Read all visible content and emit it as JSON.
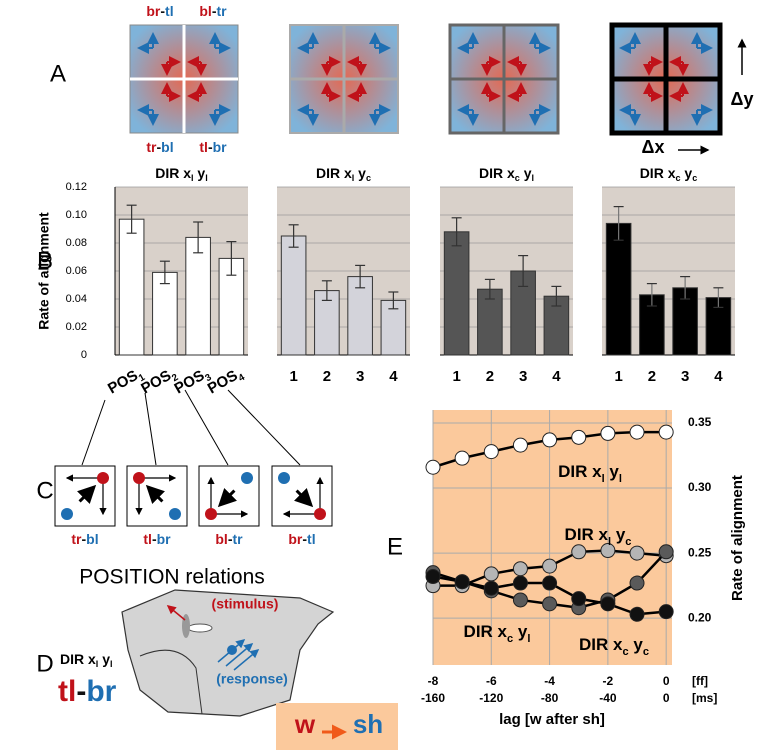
{
  "chart_data": [
    {
      "type": "bar",
      "title": [
        "DIR x",
        "l",
        " y",
        "l"
      ],
      "categories": [
        [
          "POS",
          "1"
        ],
        [
          "POS",
          "2"
        ],
        [
          "POS",
          "3"
        ],
        [
          "POS",
          "4"
        ]
      ],
      "values": [
        0.097,
        0.059,
        0.084,
        0.069
      ],
      "errors": [
        0.01,
        0.008,
        0.011,
        0.012
      ],
      "color": "#ffffff",
      "background": "#d9d1ca",
      "ylim": [
        0,
        0.12
      ],
      "yticks": [
        0,
        0.02,
        0.04,
        0.06,
        0.08,
        {
          "value": 0.1,
          "label": "0.10"
        },
        0.12
      ],
      "y_label": "Rate of alignment",
      "grid": true
    },
    {
      "type": "bar",
      "title": [
        "DIR x",
        "l",
        " y",
        "c"
      ],
      "categories": [
        "1",
        "2",
        "3",
        "4"
      ],
      "values": [
        0.085,
        0.046,
        0.056,
        0.039
      ],
      "errors": [
        0.008,
        0.007,
        0.008,
        0.006
      ],
      "color": "#d3d3da",
      "background": "#d9d1ca",
      "ylim": [
        0,
        0.12
      ],
      "yticks": [
        0,
        0.02,
        0.04,
        0.06,
        0.08,
        0.1,
        0.12
      ],
      "grid": true
    },
    {
      "type": "bar",
      "title": [
        "DIR x",
        "c",
        " y",
        "l"
      ],
      "categories": [
        "1",
        "2",
        "3",
        "4"
      ],
      "values": [
        0.088,
        0.047,
        0.06,
        0.042
      ],
      "errors": [
        0.01,
        0.007,
        0.011,
        0.007
      ],
      "color": "#555555",
      "background": "#d9d1ca",
      "ylim": [
        0,
        0.12
      ],
      "yticks": [
        0,
        0.02,
        0.04,
        0.06,
        0.08,
        0.1,
        0.12
      ],
      "grid": true
    },
    {
      "type": "bar",
      "title": [
        "DIR x",
        "c",
        " y",
        "c"
      ],
      "categories": [
        "1",
        "2",
        "3",
        "4"
      ],
      "values": [
        0.094,
        0.043,
        0.048,
        0.041
      ],
      "errors": [
        0.012,
        0.008,
        0.008,
        0.007
      ],
      "color": "#000000",
      "background": "#d9d1ca",
      "ylim": [
        0,
        0.12
      ],
      "yticks": [
        0,
        0.02,
        0.04,
        0.06,
        0.08,
        0.1,
        0.12
      ],
      "grid": true
    },
    {
      "type": "line",
      "x": [
        -8,
        -7,
        -6,
        -5,
        -4,
        -3,
        -2,
        -1,
        0
      ],
      "xlim": [
        -8,
        0.2
      ],
      "xticks": [
        -8,
        -6,
        -4,
        -2,
        0
      ],
      "x2ticks": [
        -160,
        -120,
        -80,
        -40,
        0
      ],
      "x_units": [
        "[ff]",
        "[ms]"
      ],
      "x_label": "lag [w after sh]",
      "y_label": "Rate of alignment",
      "ylim": [
        0.164,
        0.36
      ],
      "yticks": [
        {
          "value": 0.2,
          "label": "0.20"
        },
        0.25,
        {
          "value": 0.3,
          "label": "0.30"
        },
        0.35
      ],
      "background": "#fbc99c",
      "grid": true,
      "series": [
        {
          "name": [
            "DIR x",
            "l",
            " y",
            "l"
          ],
          "color": "#ffffff",
          "values": [
            0.316,
            0.323,
            0.328,
            0.333,
            0.337,
            0.339,
            0.342,
            0.343,
            0.343
          ]
        },
        {
          "name": [
            "DIR x",
            "l",
            " y",
            "c"
          ],
          "color": "#b5b5b5",
          "values": [
            0.225,
            0.225,
            0.234,
            0.238,
            0.24,
            0.251,
            0.252,
            0.25,
            0.248
          ]
        },
        {
          "name": [
            "DIR x",
            "c",
            " y",
            "l"
          ],
          "color": "#5a5a5a",
          "values": [
            0.235,
            0.228,
            0.221,
            0.214,
            0.211,
            0.208,
            0.214,
            0.227,
            0.251
          ]
        },
        {
          "name": [
            "DIR x",
            "c",
            " y",
            "c"
          ],
          "color": "#111111",
          "values": [
            0.232,
            0.228,
            0.223,
            0.227,
            0.227,
            0.215,
            0.211,
            0.203,
            0.205
          ]
        }
      ]
    }
  ],
  "panel_labels": [
    "A",
    "B",
    "C",
    "D",
    "E"
  ],
  "panel_a": {
    "labels": [
      [
        "br",
        "-",
        "tl"
      ],
      [
        "bl",
        "-",
        "tr"
      ],
      [
        "tr",
        "-",
        "bl"
      ],
      [
        "tl",
        "-",
        "br"
      ]
    ],
    "dy": "Δy",
    "dx": "Δx"
  },
  "panel_c": {
    "relations": [
      [
        "tr",
        "-",
        "bl"
      ],
      [
        "tl",
        "-",
        "br"
      ],
      [
        "bl",
        "-",
        "tr"
      ],
      [
        "br",
        "-",
        "tl"
      ]
    ],
    "caption": "POSITION relations"
  },
  "panel_d": {
    "title": [
      "DIR x",
      "l",
      " y",
      "l"
    ],
    "relation": [
      "tl",
      "-",
      "br"
    ],
    "stimulus": "(stimulus)",
    "response": "(response)"
  },
  "legend_box": {
    "from": "w",
    "to": "sh"
  }
}
